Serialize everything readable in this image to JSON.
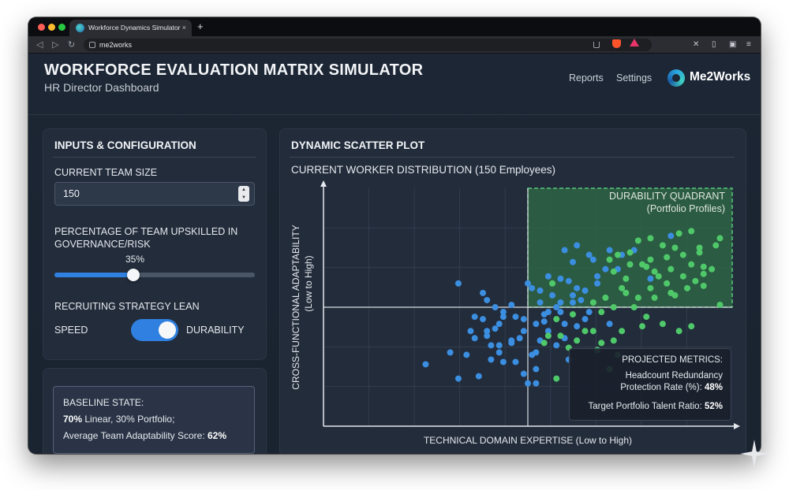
{
  "browser": {
    "tab_title": "Workforce Dynamics Simulator",
    "tab_close": "×",
    "new_tab": "+",
    "url": "me2works"
  },
  "header": {
    "title": "WORKFORCE EVALUATION MATRIX SIMULATOR",
    "subtitle": "HR Director Dashboard",
    "nav": [
      "Reports",
      "Settings"
    ],
    "brand": "Me2Works"
  },
  "inputs": {
    "title": "INPUTS & CONFIGURATION",
    "team_size_label": "CURRENT TEAM SIZE",
    "team_size_value": "150",
    "upskill_label_1": "PERCENTAGE OF TEAM UPSKILLED IN",
    "upskill_label_2": "GOVERNANCE/RISK",
    "upskill_value": "35%",
    "upskill_fraction": 0.395,
    "strategy_label": "RECRUITING STRATEGY LEAN",
    "strategy_left": "SPEED",
    "strategy_right": "DURABILITY",
    "strategy_on": true
  },
  "baseline": {
    "line1": "BASELINE STATE:",
    "line2_bold": "70%",
    "line2_rest": " Linear, 30% Portfolio;",
    "line3_rest": "Average Team Adaptability Score: ",
    "line3_bold": "62%"
  },
  "scatter": {
    "panel_title": "DYNAMIC SCATTER PLOT",
    "chart_title": "CURRENT WORKER DISTRIBUTION (150 Employees)",
    "quadrant_title_1": "DURABILITY QUADRANT",
    "quadrant_title_2": "(Portfolio Profiles)",
    "metrics_title": "PROJECTED METRICS:",
    "metric1_label_1": "Headcount Redundancy",
    "metric1_label_2": "Protection Rate (%): ",
    "metric1_value": "48%",
    "metric2_label": "Target Portfolio Talent Ratio: ",
    "metric2_value": "52%"
  },
  "chart_data": {
    "type": "scatter",
    "title": "CURRENT WORKER DISTRIBUTION (150 Employees)",
    "xlabel": "TECHNICAL DOMAIN EXPERTISE (Low to High)",
    "ylabel_1": "CROSS-FUNCTIONAL ADAPTABILITY",
    "ylabel_2": "(Low to High)",
    "xlim": [
      0,
      1
    ],
    "ylim": [
      0,
      1
    ],
    "grid": true,
    "colors": {
      "blue": "#3b8ee0",
      "green": "#4fc86a",
      "quadrant": "#2f6b45",
      "quadrant_border": "#58c77a"
    },
    "series": [
      {
        "color": "blue",
        "points": [
          [
            0.25,
            0.26
          ],
          [
            0.33,
            0.2
          ],
          [
            0.37,
            0.37
          ],
          [
            0.39,
            0.45
          ],
          [
            0.31,
            0.31
          ],
          [
            0.35,
            0.3
          ],
          [
            0.43,
            0.34
          ],
          [
            0.43,
            0.43
          ],
          [
            0.44,
            0.27
          ],
          [
            0.49,
            0.45
          ],
          [
            0.46,
            0.36
          ],
          [
            0.48,
            0.37
          ],
          [
            0.43,
            0.31
          ],
          [
            0.52,
            0.31
          ],
          [
            0.59,
            0.74
          ],
          [
            0.62,
            0.58
          ],
          [
            0.58,
            0.52
          ],
          [
            0.55,
            0.48
          ],
          [
            0.61,
            0.52
          ],
          [
            0.64,
            0.45
          ],
          [
            0.67,
            0.63
          ],
          [
            0.7,
            0.74
          ],
          [
            0.61,
            0.55
          ],
          [
            0.65,
            0.72
          ],
          [
            0.55,
            0.63
          ],
          [
            0.53,
            0.57
          ],
          [
            0.51,
            0.58
          ],
          [
            0.52,
            0.43
          ],
          [
            0.47,
            0.27
          ],
          [
            0.49,
            0.4
          ],
          [
            0.57,
            0.5
          ],
          [
            0.53,
            0.36
          ],
          [
            0.54,
            0.47
          ],
          [
            0.51,
            0.3
          ],
          [
            0.41,
            0.28
          ],
          [
            0.4,
            0.53
          ],
          [
            0.5,
            0.18
          ],
          [
            0.42,
            0.5
          ],
          [
            0.33,
            0.6
          ],
          [
            0.4,
            0.38
          ],
          [
            0.38,
            0.21
          ],
          [
            0.57,
            0.34
          ],
          [
            0.62,
            0.76
          ],
          [
            0.65,
            0.48
          ],
          [
            0.44,
            0.48
          ],
          [
            0.52,
            0.18
          ],
          [
            0.36,
            0.4
          ],
          [
            0.42,
            0.41
          ],
          [
            0.5,
            0.6
          ],
          [
            0.37,
            0.46
          ],
          [
            0.59,
            0.43
          ],
          [
            0.66,
            0.7
          ],
          [
            0.73,
            0.72
          ],
          [
            0.62,
            0.42
          ],
          [
            0.55,
            0.4
          ],
          [
            0.49,
            0.22
          ],
          [
            0.41,
            0.34
          ],
          [
            0.6,
            0.61
          ],
          [
            0.52,
            0.24
          ],
          [
            0.46,
            0.35
          ],
          [
            0.69,
            0.66
          ],
          [
            0.58,
            0.62
          ],
          [
            0.64,
            0.57
          ],
          [
            0.53,
            0.52
          ],
          [
            0.6,
            0.28
          ],
          [
            0.44,
            0.46
          ],
          [
            0.7,
            0.43
          ],
          [
            0.67,
            0.6
          ],
          [
            0.56,
            0.55
          ],
          [
            0.63,
            0.53
          ],
          [
            0.59,
            0.37
          ],
          [
            0.39,
            0.56
          ],
          [
            0.47,
            0.46
          ],
          [
            0.54,
            0.44
          ],
          [
            0.46,
            0.51
          ],
          [
            0.58,
            0.48
          ],
          [
            0.4,
            0.4
          ],
          [
            0.61,
            0.69
          ],
          [
            0.72,
            0.66
          ],
          [
            0.76,
            0.74
          ],
          [
            0.8,
            0.62
          ],
          [
            0.85,
            0.8
          ]
        ]
      },
      {
        "color": "green",
        "points": [
          [
            0.8,
            0.79
          ],
          [
            0.83,
            0.76
          ],
          [
            0.86,
            0.75
          ],
          [
            0.92,
            0.73
          ],
          [
            0.87,
            0.81
          ],
          [
            0.72,
            0.72
          ],
          [
            0.75,
            0.68
          ],
          [
            0.78,
            0.68
          ],
          [
            0.81,
            0.65
          ],
          [
            0.84,
            0.6
          ],
          [
            0.88,
            0.63
          ],
          [
            0.9,
            0.68
          ],
          [
            0.92,
            0.75
          ],
          [
            0.91,
            0.61
          ],
          [
            0.89,
            0.58
          ],
          [
            0.85,
            0.56
          ],
          [
            0.8,
            0.58
          ],
          [
            0.77,
            0.54
          ],
          [
            0.74,
            0.62
          ],
          [
            0.71,
            0.65
          ],
          [
            0.69,
            0.54
          ],
          [
            0.79,
            0.46
          ],
          [
            0.83,
            0.43
          ],
          [
            0.76,
            0.5
          ],
          [
            0.73,
            0.4
          ],
          [
            0.71,
            0.36
          ],
          [
            0.68,
            0.35
          ],
          [
            0.9,
            0.42
          ],
          [
            0.87,
            0.4
          ],
          [
            0.93,
            0.67
          ],
          [
            0.81,
            0.54
          ],
          [
            0.66,
            0.4
          ],
          [
            0.7,
            0.24
          ],
          [
            0.57,
            0.2
          ],
          [
            0.57,
            0.45
          ],
          [
            0.55,
            0.38
          ],
          [
            0.54,
            0.35
          ],
          [
            0.58,
            0.38
          ],
          [
            0.64,
            0.4
          ],
          [
            0.6,
            0.33
          ],
          [
            0.56,
            0.6
          ],
          [
            0.82,
            0.63
          ],
          [
            0.79,
            0.67
          ],
          [
            0.75,
            0.73
          ],
          [
            0.96,
            0.76
          ],
          [
            0.97,
            0.51
          ],
          [
            0.72,
            0.3
          ],
          [
            0.78,
            0.42
          ],
          [
            0.86,
            0.55
          ],
          [
            0.68,
            0.48
          ],
          [
            0.95,
            0.66
          ],
          [
            0.93,
            0.59
          ],
          [
            0.84,
            0.71
          ],
          [
            0.77,
            0.78
          ],
          [
            0.73,
            0.58
          ],
          [
            0.7,
            0.7
          ],
          [
            0.9,
            0.82
          ],
          [
            0.62,
            0.36
          ],
          [
            0.67,
            0.32
          ],
          [
            0.85,
            0.66
          ],
          [
            0.88,
            0.72
          ],
          [
            0.66,
            0.52
          ],
          [
            0.61,
            0.47
          ],
          [
            0.74,
            0.56
          ],
          [
            0.8,
            0.7
          ],
          [
            0.97,
            0.79
          ],
          [
            0.93,
            0.64
          ],
          [
            0.71,
            0.5
          ]
        ]
      }
    ]
  }
}
